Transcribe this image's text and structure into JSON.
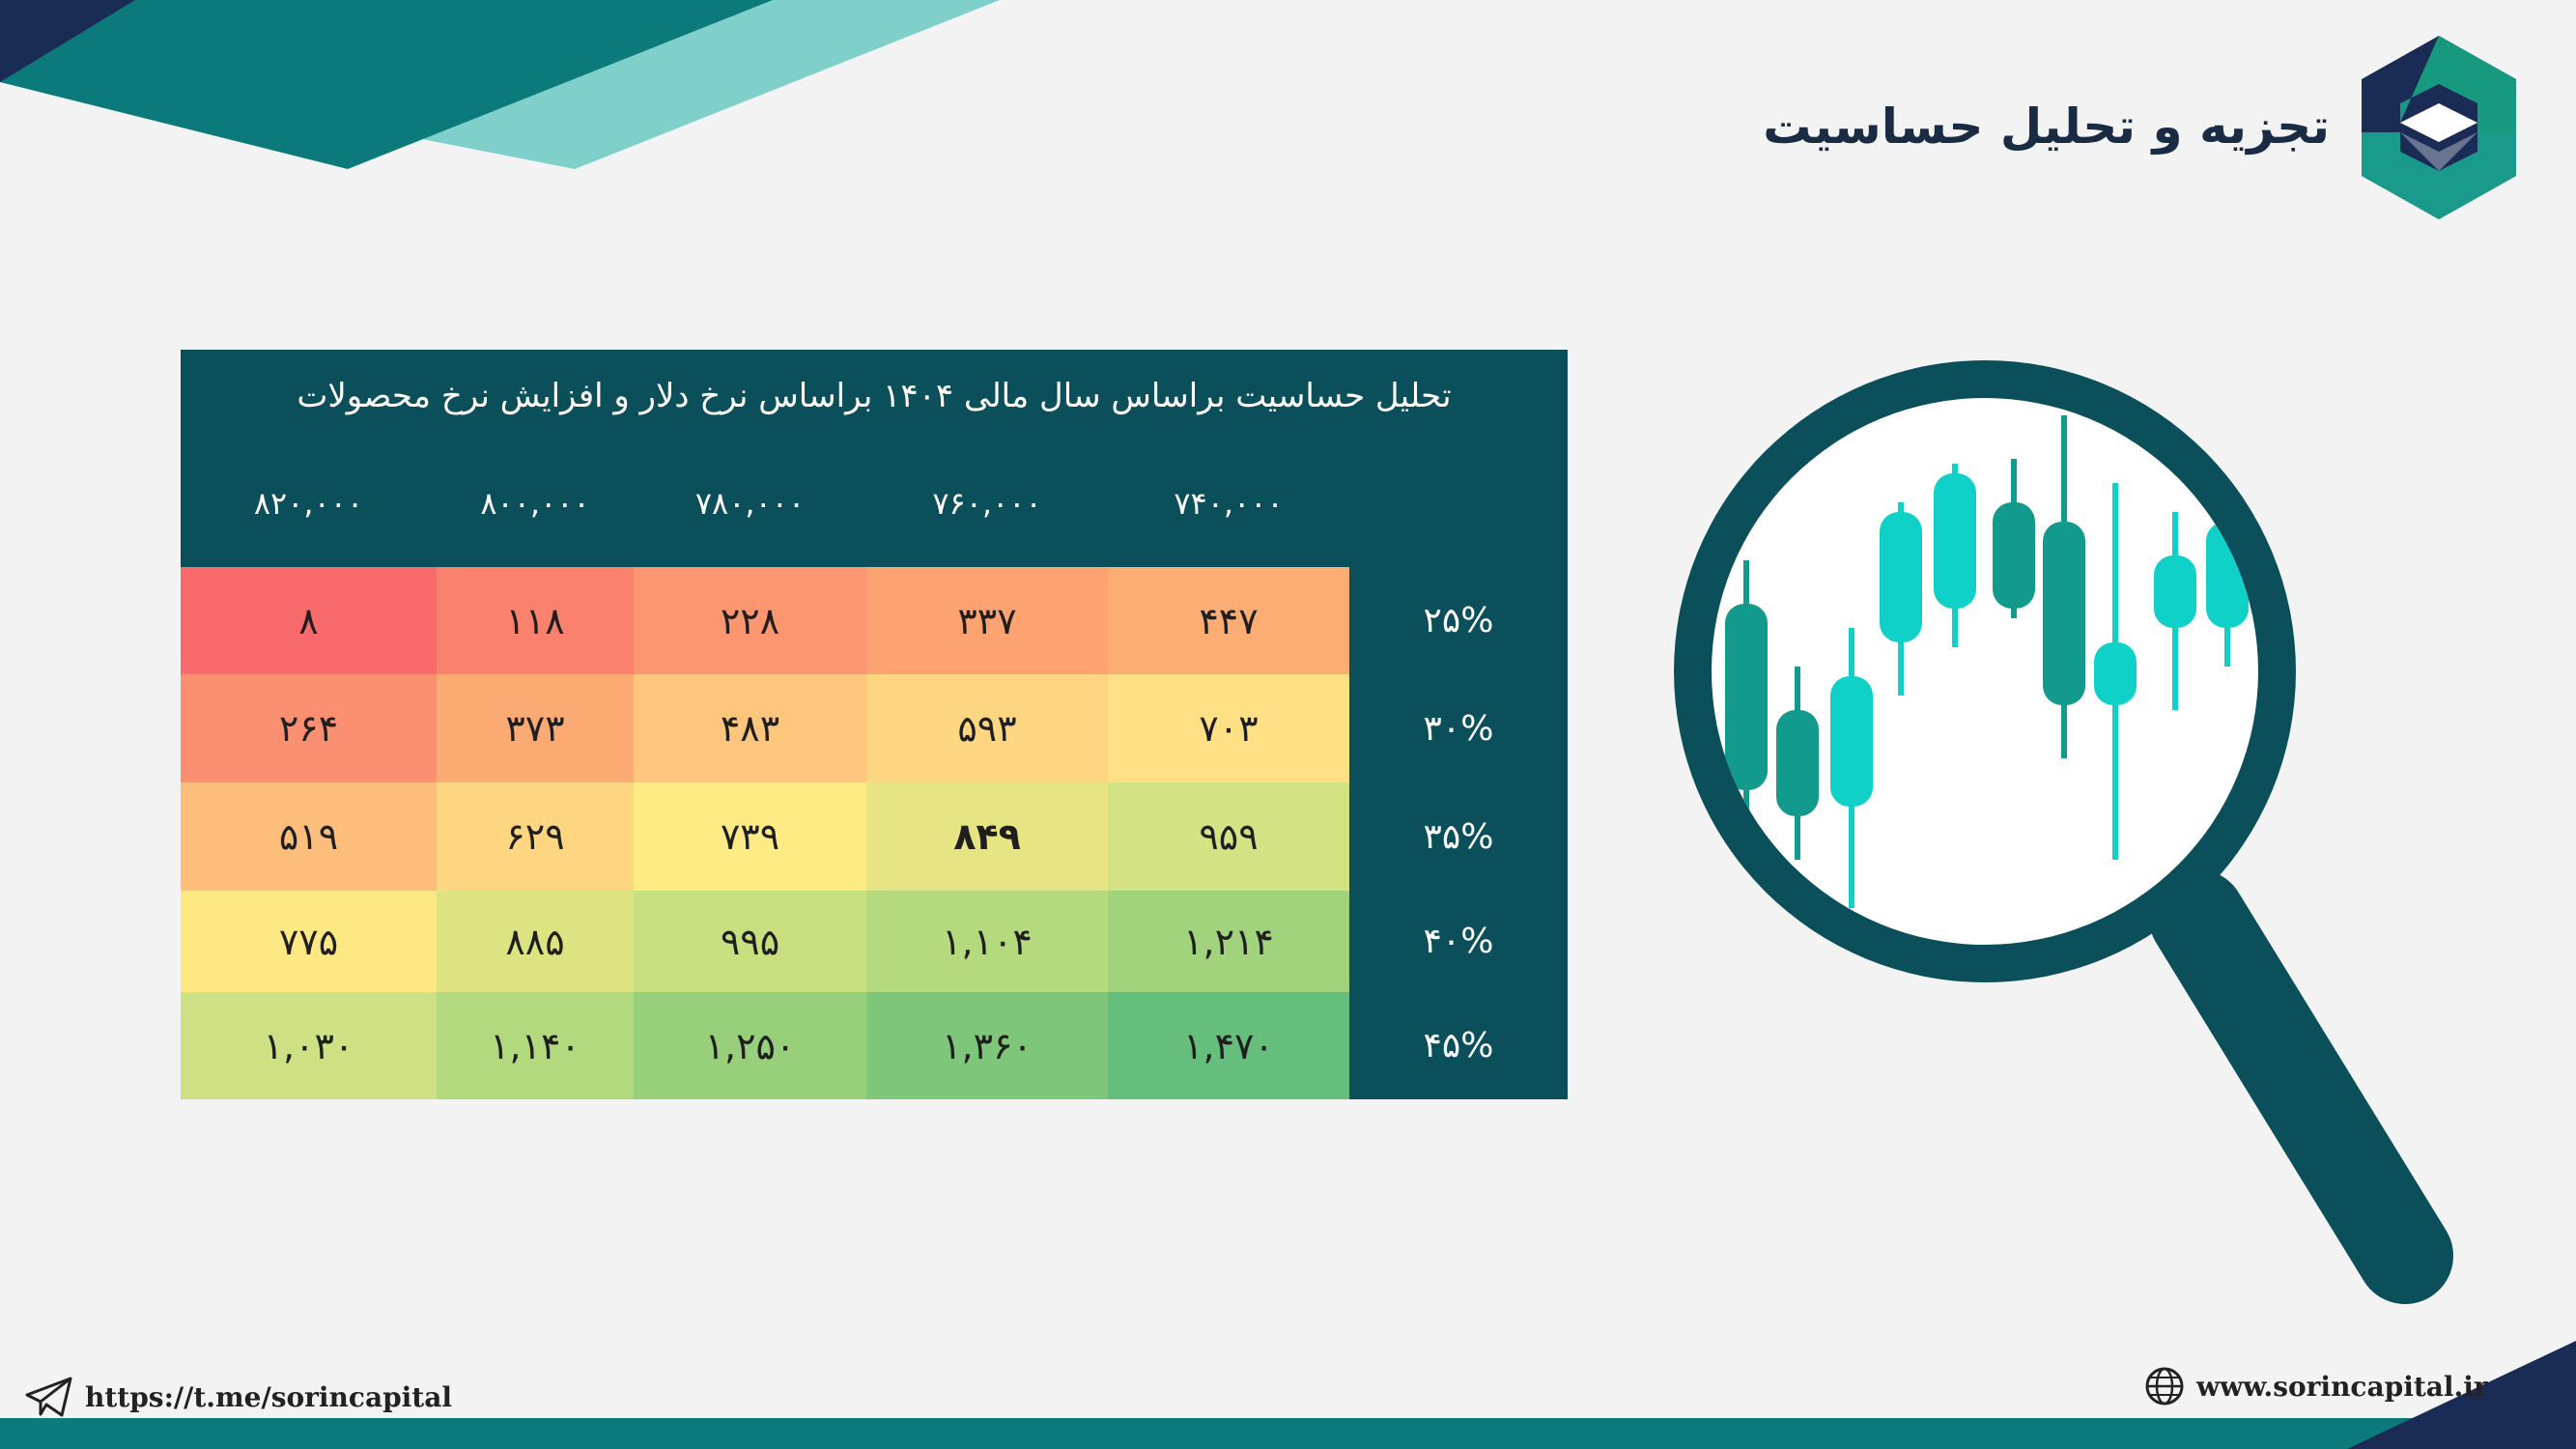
{
  "header": {
    "title": "تجزیه و تحلیل حساسیت"
  },
  "table": {
    "caption": "تحلیل حساسیت براساس سال مالی ۱۴۰۴ براساس نرخ دلار و افزایش نرخ محصولات",
    "column_headers": [
      "۸۲۰,۰۰۰",
      "۸۰۰,۰۰۰",
      "۷۸۰,۰۰۰",
      "۷۶۰,۰۰۰",
      "۷۴۰,۰۰۰"
    ],
    "rows": [
      {
        "label": "۲۵%",
        "cells": [
          "۸",
          "۱۱۸",
          "۲۲۸",
          "۳۳۷",
          "۴۴۷"
        ]
      },
      {
        "label": "۳۰%",
        "cells": [
          "۲۶۴",
          "۳۷۳",
          "۴۸۳",
          "۵۹۳",
          "۷۰۳"
        ]
      },
      {
        "label": "۳۵%",
        "cells": [
          "۵۱۹",
          "۶۲۹",
          "۷۳۹",
          "۸۴۹",
          "۹۵۹"
        ]
      },
      {
        "label": "۴۰%",
        "cells": [
          "۷۷۵",
          "۸۸۵",
          "۹۹۵",
          "۱,۱۰۴",
          "۱,۲۱۴"
        ]
      },
      {
        "label": "۴۵%",
        "cells": [
          "۱,۰۳۰",
          "۱,۱۴۰",
          "۱,۲۵۰",
          "۱,۳۶۰",
          "۱,۴۷۰"
        ]
      }
    ],
    "highlighted_cell": {
      "row": 2,
      "col": 3
    },
    "cell_colors": [
      [
        "#f86a6c",
        "#fa816e",
        "#fc9671",
        "#fda372",
        "#fcad73"
      ],
      [
        "#fb8f71",
        "#fcaa73",
        "#fdc67c",
        "#fed681",
        "#ffe085"
      ],
      [
        "#fdbd7b",
        "#fed580",
        "#ffeb84",
        "#e7e583",
        "#d3e283"
      ],
      [
        "#fde883",
        "#dde381",
        "#c8df80",
        "#b5d97d",
        "#a0d37c"
      ],
      [
        "#cde083",
        "#b3d97e",
        "#97cf7b",
        "#7ec679",
        "#65be7b"
      ]
    ]
  },
  "footer": {
    "telegram_link": "https://t.me/sorincapital",
    "website": "www.sorincapital.ir"
  },
  "colors": {
    "teal_dark": "#0b4f5b",
    "teal_accent": "#0c7a7a",
    "teal_light": "#7fcfcb",
    "navy": "#1a2b55",
    "candle_dark": "#129a8c",
    "candle_light": "#0fd1c8"
  },
  "icons": {
    "logo": "sorin-capital-logo",
    "telegram": "telegram-icon",
    "globe": "globe-icon",
    "magnifier": "magnifying-glass-icon"
  }
}
